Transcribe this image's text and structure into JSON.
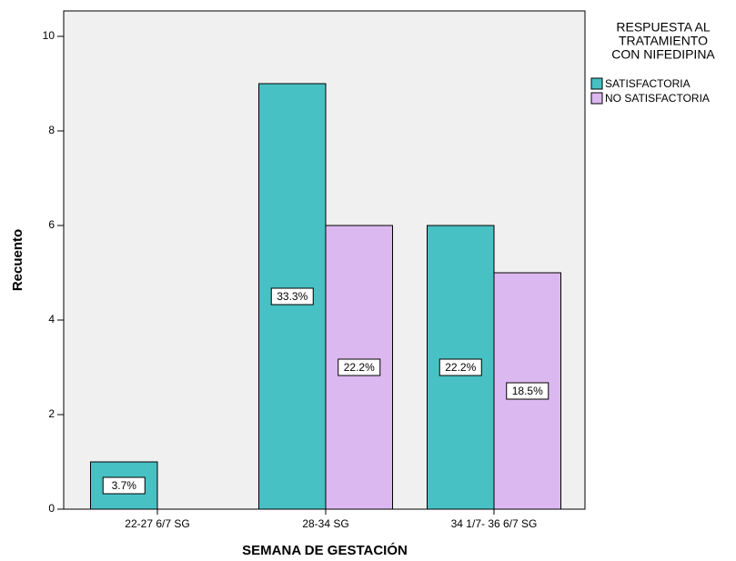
{
  "chart_data": {
    "type": "bar",
    "y_label": "Recuento",
    "x_label": "SEMANA DE GESTACIÓN",
    "legend_title": [
      "RESPUESTA AL",
      "TRATAMIENTO",
      "CON NIFEDIPINA"
    ],
    "legend": "right",
    "categories": [
      "22-27 6/7 SG",
      "28-34 SG",
      "34 1/7- 36 6/7 SG"
    ],
    "series": [
      {
        "name": "SATISFACTORIA",
        "color": "#48c1c4",
        "values": [
          1,
          9,
          6
        ],
        "value_labels": [
          "3.7%",
          "33.3%",
          "22.2%"
        ]
      },
      {
        "name": "NO SATISFACTORIA",
        "color": "#dcb8f0",
        "values": [
          0,
          6,
          5
        ],
        "value_labels": [
          null,
          "22.2%",
          "18.5%"
        ]
      }
    ],
    "ylim": [
      0,
      10.5
    ],
    "yticks": [
      0,
      2,
      4,
      6,
      8,
      10
    ],
    "grid": false
  }
}
